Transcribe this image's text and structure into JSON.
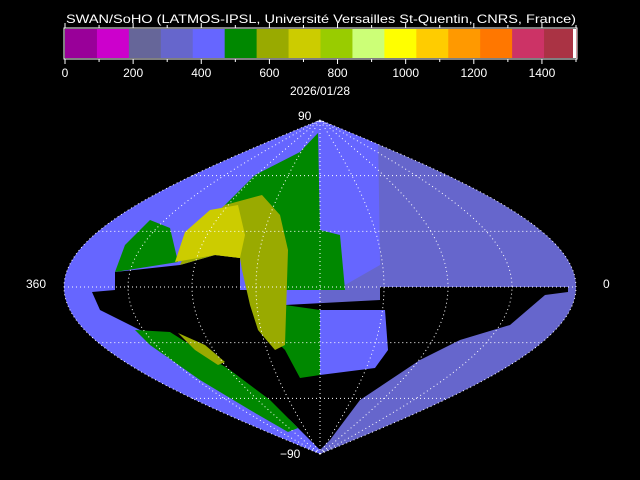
{
  "title": "SWAN/SoHO (LATMOS-IPSL, Université Versailles St-Quentin, CNRS, France)",
  "date": "2026/01/28",
  "colorbar": {
    "min": 0,
    "max": 1500,
    "tick_labels": [
      "0",
      "200",
      "400",
      "600",
      "800",
      "1000",
      "1200",
      "1400"
    ],
    "tick_values": [
      0,
      200,
      400,
      600,
      800,
      1000,
      1200,
      1400
    ],
    "colors": [
      "#990099",
      "#cc00cc",
      "#666699",
      "#6666cc",
      "#6666ff",
      "#008800",
      "#99aa00",
      "#cccc00",
      "#99cc00",
      "#ccff77",
      "#ffff00",
      "#ffcc00",
      "#ff9900",
      "#ff7700",
      "#cc3366",
      "#aa3344",
      "#ffffff"
    ]
  },
  "map": {
    "projection": "sinusoidal",
    "grid": true,
    "labels": {
      "top": "90",
      "bottom": "−90",
      "left": "360",
      "right": "0"
    },
    "region_colors": {
      "sky_left": "#6666ff",
      "sky_right": "#6666cc",
      "gap": "#000000",
      "green": "#008800",
      "olive": "#99aa00",
      "yellow": "#cccc00"
    }
  }
}
